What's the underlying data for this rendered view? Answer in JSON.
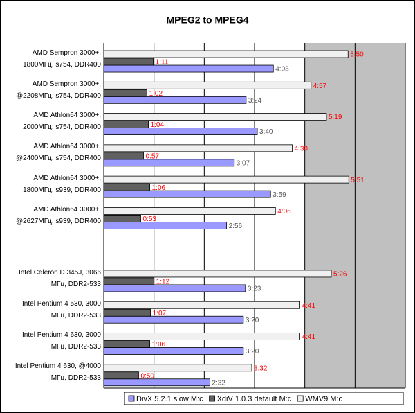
{
  "chart_data": {
    "type": "bar",
    "orientation": "horizontal",
    "title": "MPEG2 to MPEG4",
    "categories": [
      "AMD Sempron 3000+,\n1800МГц, s754, DDR400",
      "AMD Sempron 3000+,\n@2208МГц, s754, DDR400",
      "AMD Athlon64 3000+,\n2000МГц, s754, DDR400",
      "AMD Athlon64 3000+,\n@2400МГц, s754, DDR400",
      "AMD Athlon64 3000+,\n1800МГц, s939, DDR400",
      "AMD Athlon64 3000+,\n@2627МГц, s939, DDR400",
      null,
      "Intel Celeron D 345J, 3066\nМГц, DDR2-533",
      "Intel Pentium 4 530, 3000\nМГц, DDR2-533",
      "Intel Pentium 4 630, 3000\nМГц, DDR2-533",
      "Intel Pentium 4 630, @4000\nМГц, DDR2-533"
    ],
    "series": [
      {
        "name": "DivX 5.2.1 slow M:c",
        "color": "#9999ff",
        "label_color": "#555555",
        "values": [
          243,
          204,
          220,
          187,
          239,
          176,
          null,
          203,
          200,
          200,
          152
        ],
        "value_labels": [
          "4:03",
          "3:24",
          "3:40",
          "3:07",
          "3:59",
          "2:56",
          null,
          "3:23",
          "3:20",
          "3:20",
          "2:32"
        ]
      },
      {
        "name": "XdiV 1.0.3 default M:c",
        "color": "#606060",
        "label_color": "#ff0000",
        "values": [
          71,
          62,
          64,
          57,
          66,
          53,
          null,
          72,
          67,
          66,
          50
        ],
        "value_labels": [
          "1:11",
          "1:02",
          "1:04",
          "0:57",
          "1:06",
          "0:53",
          null,
          "1:12",
          "1:07",
          "1:06",
          "0:50"
        ]
      },
      {
        "name": "WMV9 M:c",
        "color": "#f0f0f0",
        "label_color": "#ff0000",
        "values": [
          350,
          297,
          319,
          270,
          351,
          246,
          null,
          326,
          281,
          281,
          212
        ],
        "value_labels": [
          "5:50",
          "4:57",
          "5:19",
          "4:30",
          "5:51",
          "4:06",
          null,
          "5:26",
          "4:41",
          "4:41",
          "3:32"
        ]
      }
    ],
    "xlim": [
      0,
      432
    ],
    "xticks": [
      0,
      72,
      144,
      216,
      288,
      360,
      432
    ],
    "grid": true,
    "legend": "bottom"
  }
}
